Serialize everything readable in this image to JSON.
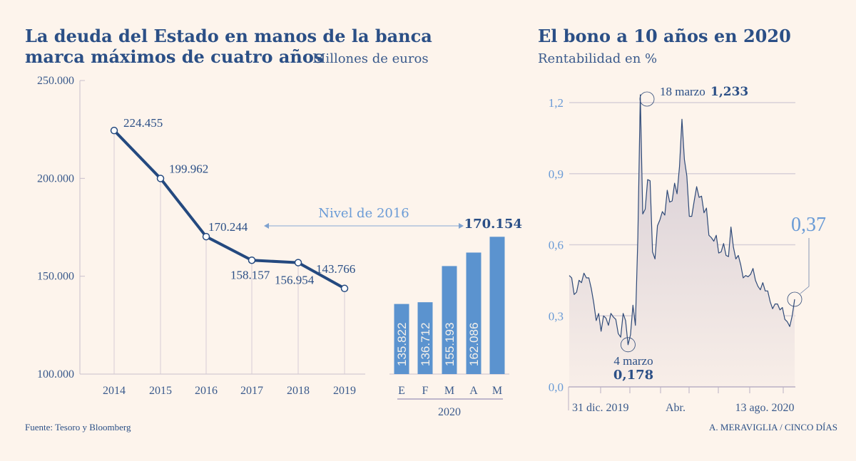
{
  "colors": {
    "background": "#fdf4ec",
    "navy": "#2b4f86",
    "bar": "#5b93cf",
    "light_blue": "#6a9bd6",
    "grid": "#d8d0d8"
  },
  "source": "Fuente: Tesoro y Bloomberg",
  "credit": "A. MERAVIGLIA / CINCO DÍAS",
  "chart_data": [
    {
      "type": "line",
      "title": "La deuda del Estado en manos de la banca marca máximos de cuatro años",
      "subtitle": "Millones de euros",
      "categories": [
        "2014",
        "2015",
        "2016",
        "2017",
        "2018",
        "2019"
      ],
      "values": [
        224455,
        199962,
        170244,
        158157,
        156954,
        143766
      ],
      "data_labels": [
        "224.455",
        "199.962",
        "170.244",
        "158.157",
        "156.954",
        "143.766"
      ],
      "ylim": [
        100000,
        250000
      ],
      "yticks": [
        {
          "v": 100000,
          "label": "100.000"
        },
        {
          "v": 150000,
          "label": "150.000"
        },
        {
          "v": 200000,
          "label": "200.000"
        },
        {
          "v": 250000,
          "label": "250.000"
        }
      ],
      "annotation": "Nivel de 2016",
      "grid": false
    },
    {
      "type": "bar",
      "categories": [
        "E",
        "F",
        "M",
        "A",
        "M"
      ],
      "group_label": "2020",
      "values": [
        135822,
        136712,
        155193,
        162086,
        170154
      ],
      "data_labels": [
        "135.822",
        "136.712",
        "155.193",
        "162.086",
        "170.154"
      ],
      "ylim": [
        100000,
        250000
      ]
    },
    {
      "type": "area",
      "title": "El bono a 10 años en 2020",
      "subtitle": "Rentabilidad en %",
      "ylim": [
        0,
        1.2
      ],
      "yticks": [
        {
          "v": 0,
          "label": "0,0"
        },
        {
          "v": 0.3,
          "label": "0,3"
        },
        {
          "v": 0.6,
          "label": "0,6"
        },
        {
          "v": 0.9,
          "label": "0,9"
        },
        {
          "v": 1.2,
          "label": "1,2"
        }
      ],
      "xtick_labels": [
        "31 dic. 2019",
        "Abr.",
        "13 ago. 2020"
      ],
      "grid": true,
      "values": [
        0.47,
        0.46,
        0.39,
        0.4,
        0.45,
        0.44,
        0.48,
        0.46,
        0.46,
        0.415,
        0.355,
        0.28,
        0.31,
        0.235,
        0.3,
        0.29,
        0.26,
        0.31,
        0.295,
        0.285,
        0.225,
        0.21,
        0.31,
        0.28,
        0.178,
        0.22,
        0.345,
        0.26,
        0.63,
        1.233,
        0.73,
        0.75,
        0.875,
        0.87,
        0.57,
        0.54,
        0.68,
        0.705,
        0.74,
        0.725,
        0.83,
        0.78,
        0.785,
        0.86,
        0.815,
        0.93,
        1.13,
        0.96,
        0.89,
        0.72,
        0.72,
        0.785,
        0.845,
        0.8,
        0.805,
        0.735,
        0.755,
        0.64,
        0.63,
        0.615,
        0.64,
        0.565,
        0.57,
        0.605,
        0.555,
        0.55,
        0.675,
        0.59,
        0.54,
        0.555,
        0.515,
        0.46,
        0.47,
        0.465,
        0.475,
        0.5,
        0.45,
        0.425,
        0.41,
        0.44,
        0.405,
        0.405,
        0.36,
        0.33,
        0.35,
        0.35,
        0.325,
        0.335,
        0.285,
        0.275,
        0.255,
        0.3,
        0.37
      ],
      "annotations": {
        "min": {
          "date": "4 marzo",
          "value": "0,178"
        },
        "max": {
          "date": "18 marzo",
          "value": "1,233"
        },
        "last": {
          "value": "0,37"
        }
      }
    }
  ]
}
